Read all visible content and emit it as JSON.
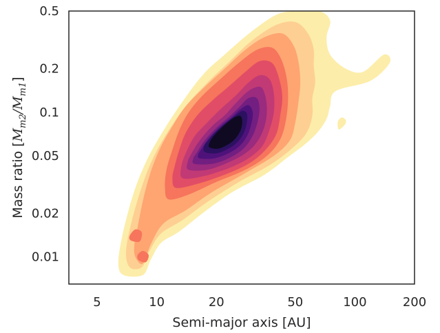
{
  "chart_data": {
    "type": "contour",
    "xlabel": "Semi-major axis [AU]",
    "ylabel": {
      "prefix": "Mass ratio [",
      "m1": "M",
      "s1": "m2",
      "slash": "/",
      "m2": "M",
      "s2": "m1",
      "suffix": "]"
    },
    "x_scale": "log",
    "y_scale": "log",
    "xlim": [
      3.6,
      200
    ],
    "ylim": [
      0.0065,
      0.5
    ],
    "x_ticks": [
      {
        "value": 5,
        "label": "5"
      },
      {
        "value": 10,
        "label": "10"
      },
      {
        "value": 20,
        "label": "20"
      },
      {
        "value": 50,
        "label": "50"
      },
      {
        "value": 100,
        "label": "100"
      },
      {
        "value": 200,
        "label": "200"
      }
    ],
    "y_ticks": [
      {
        "value": 0.01,
        "label": "0.01"
      },
      {
        "value": 0.02,
        "label": "0.02"
      },
      {
        "value": 0.05,
        "label": "0.05"
      },
      {
        "value": 0.1,
        "label": "0.1"
      },
      {
        "value": 0.2,
        "label": "0.2"
      },
      {
        "value": 0.5,
        "label": "0.5"
      }
    ],
    "grid": false,
    "colormap": "magma_r",
    "levels": [
      {
        "color": "#fcedaa",
        "points": [
          [
            6.8,
            0.0075
          ],
          [
            8.5,
            0.0075
          ],
          [
            9.3,
            0.0095
          ],
          [
            10.5,
            0.0125
          ],
          [
            13,
            0.015
          ],
          [
            17,
            0.02
          ],
          [
            24,
            0.028
          ],
          [
            35,
            0.037
          ],
          [
            46,
            0.049
          ],
          [
            56,
            0.06
          ],
          [
            65,
            0.073
          ],
          [
            72,
            0.09
          ],
          [
            75,
            0.11
          ],
          [
            80,
            0.14
          ],
          [
            120,
            0.165
          ],
          [
            150,
            0.22
          ],
          [
            140,
            0.25
          ],
          [
            110,
            0.19
          ],
          [
            90,
            0.2
          ],
          [
            75,
            0.25
          ],
          [
            72,
            0.33
          ],
          [
            75,
            0.43
          ],
          [
            66,
            0.5
          ],
          [
            50,
            0.5
          ],
          [
            40,
            0.47
          ],
          [
            30,
            0.36
          ],
          [
            22,
            0.25
          ],
          [
            17,
            0.18
          ],
          [
            13,
            0.11
          ],
          [
            10.5,
            0.07
          ],
          [
            8.8,
            0.045
          ],
          [
            7.6,
            0.027
          ],
          [
            6.7,
            0.014
          ],
          [
            6.4,
            0.009
          ]
        ]
      },
      {
        "color": "#fecf92",
        "points": [
          [
            7.3,
            0.0085
          ],
          [
            8.4,
            0.0085
          ],
          [
            9.2,
            0.011
          ],
          [
            10.5,
            0.0145
          ],
          [
            13.5,
            0.018
          ],
          [
            18,
            0.024
          ],
          [
            26,
            0.033
          ],
          [
            37,
            0.043
          ],
          [
            48,
            0.056
          ],
          [
            57,
            0.072
          ],
          [
            61,
            0.095
          ],
          [
            61,
            0.125
          ],
          [
            63,
            0.16
          ],
          [
            62,
            0.21
          ],
          [
            62,
            0.27
          ],
          [
            58,
            0.35
          ],
          [
            50,
            0.42
          ],
          [
            40,
            0.4
          ],
          [
            30,
            0.31
          ],
          [
            23,
            0.22
          ],
          [
            18,
            0.16
          ],
          [
            14,
            0.11
          ],
          [
            11.5,
            0.075
          ],
          [
            9.7,
            0.05
          ],
          [
            8.5,
            0.032
          ],
          [
            7.5,
            0.018
          ],
          [
            7,
            0.011
          ]
        ]
      },
      {
        "color": "#fea572",
        "points": [
          [
            7.8,
            0.01
          ],
          [
            8.5,
            0.009
          ],
          [
            9.4,
            0.0125
          ],
          [
            10.8,
            0.017
          ],
          [
            14,
            0.021
          ],
          [
            19,
            0.028
          ],
          [
            28,
            0.038
          ],
          [
            39,
            0.05
          ],
          [
            47,
            0.064
          ],
          [
            50,
            0.085
          ],
          [
            52,
            0.12
          ],
          [
            53,
            0.16
          ],
          [
            52,
            0.22
          ],
          [
            49,
            0.29
          ],
          [
            43,
            0.35
          ],
          [
            35,
            0.33
          ],
          [
            28,
            0.27
          ],
          [
            22,
            0.2
          ],
          [
            17.5,
            0.15
          ],
          [
            14,
            0.11
          ],
          [
            12,
            0.08
          ],
          [
            10.5,
            0.058
          ],
          [
            9.4,
            0.04
          ],
          [
            8.6,
            0.026
          ],
          [
            8,
            0.016
          ],
          [
            7.7,
            0.012
          ]
        ]
      },
      {
        "color": "#f6755c",
        "points": [
          [
            11.5,
            0.025
          ],
          [
            14.5,
            0.027
          ],
          [
            20,
            0.033
          ],
          [
            28,
            0.04
          ],
          [
            36,
            0.05
          ],
          [
            42,
            0.065
          ],
          [
            45,
            0.09
          ],
          [
            46,
            0.13
          ],
          [
            45,
            0.18
          ],
          [
            42,
            0.24
          ],
          [
            38,
            0.28
          ],
          [
            32,
            0.27
          ],
          [
            26,
            0.22
          ],
          [
            21,
            0.17
          ],
          [
            17,
            0.13
          ],
          [
            14.5,
            0.1
          ],
          [
            13,
            0.075
          ],
          [
            12,
            0.055
          ],
          [
            11.2,
            0.04
          ],
          [
            11,
            0.03
          ]
        ]
      },
      {
        "color": "#e14d66",
        "points": [
          [
            12.5,
            0.03
          ],
          [
            16,
            0.032
          ],
          [
            22,
            0.037
          ],
          [
            29,
            0.044
          ],
          [
            35,
            0.054
          ],
          [
            40,
            0.07
          ],
          [
            42,
            0.095
          ],
          [
            43,
            0.13
          ],
          [
            41,
            0.18
          ],
          [
            38,
            0.22
          ],
          [
            33,
            0.225
          ],
          [
            28,
            0.19
          ],
          [
            23,
            0.15
          ],
          [
            19,
            0.12
          ],
          [
            16,
            0.095
          ],
          [
            14,
            0.072
          ],
          [
            13,
            0.055
          ],
          [
            12.3,
            0.042
          ],
          [
            12,
            0.035
          ]
        ]
      },
      {
        "color": "#c13a75",
        "points": [
          [
            13.5,
            0.035
          ],
          [
            17,
            0.036
          ],
          [
            23,
            0.041
          ],
          [
            29,
            0.048
          ],
          [
            34,
            0.058
          ],
          [
            37,
            0.075
          ],
          [
            39,
            0.1
          ],
          [
            39,
            0.135
          ],
          [
            37,
            0.17
          ],
          [
            33,
            0.18
          ],
          [
            29,
            0.16
          ],
          [
            25,
            0.13
          ],
          [
            21,
            0.105
          ],
          [
            18,
            0.085
          ],
          [
            15.5,
            0.068
          ],
          [
            14,
            0.052
          ],
          [
            13.3,
            0.042
          ]
        ]
      },
      {
        "color": "#9a2b7e",
        "points": [
          [
            14.5,
            0.04
          ],
          [
            18,
            0.04
          ],
          [
            23,
            0.045
          ],
          [
            28,
            0.052
          ],
          [
            32,
            0.062
          ],
          [
            35,
            0.08
          ],
          [
            36,
            0.105
          ],
          [
            35,
            0.135
          ],
          [
            33,
            0.15
          ],
          [
            29,
            0.14
          ],
          [
            25,
            0.115
          ],
          [
            22,
            0.095
          ],
          [
            19,
            0.08
          ],
          [
            16.5,
            0.064
          ],
          [
            15,
            0.052
          ],
          [
            14.3,
            0.045
          ]
        ]
      },
      {
        "color": "#721f81",
        "points": [
          [
            15.5,
            0.044
          ],
          [
            19,
            0.044
          ],
          [
            23,
            0.048
          ],
          [
            27,
            0.055
          ],
          [
            30,
            0.066
          ],
          [
            32,
            0.082
          ],
          [
            33,
            0.105
          ],
          [
            32,
            0.125
          ],
          [
            29,
            0.125
          ],
          [
            26,
            0.108
          ],
          [
            23,
            0.092
          ],
          [
            20,
            0.078
          ],
          [
            17.5,
            0.064
          ],
          [
            16,
            0.053
          ],
          [
            15.3,
            0.048
          ]
        ]
      },
      {
        "color": "#4f127b",
        "points": [
          [
            16.5,
            0.048
          ],
          [
            19.5,
            0.048
          ],
          [
            23,
            0.052
          ],
          [
            26,
            0.058
          ],
          [
            28.5,
            0.068
          ],
          [
            30,
            0.083
          ],
          [
            30.5,
            0.1
          ],
          [
            29,
            0.112
          ],
          [
            26.5,
            0.105
          ],
          [
            24,
            0.093
          ],
          [
            21,
            0.08
          ],
          [
            18.5,
            0.067
          ],
          [
            17,
            0.057
          ],
          [
            16.2,
            0.051
          ]
        ]
      },
      {
        "color": "#2c1160",
        "points": [
          [
            17.5,
            0.053
          ],
          [
            20,
            0.052
          ],
          [
            23,
            0.056
          ],
          [
            25.5,
            0.062
          ],
          [
            27.5,
            0.072
          ],
          [
            28.5,
            0.085
          ],
          [
            28.5,
            0.098
          ],
          [
            27,
            0.102
          ],
          [
            25,
            0.095
          ],
          [
            22.5,
            0.085
          ],
          [
            20,
            0.074
          ],
          [
            18.2,
            0.064
          ],
          [
            17.3,
            0.058
          ]
        ]
      },
      {
        "color": "#0f0a22",
        "points": [
          [
            18.5,
            0.057
          ],
          [
            20.5,
            0.056
          ],
          [
            23,
            0.06
          ],
          [
            25,
            0.066
          ],
          [
            26.5,
            0.075
          ],
          [
            27,
            0.086
          ],
          [
            26.5,
            0.094
          ],
          [
            25,
            0.093
          ],
          [
            23,
            0.086
          ],
          [
            21,
            0.077
          ],
          [
            19.3,
            0.068
          ],
          [
            18.4,
            0.061
          ]
        ]
      }
    ],
    "islands": [
      {
        "color": "#fcedaa",
        "points": [
          [
            83,
            0.076
          ],
          [
            89,
            0.082
          ],
          [
            90,
            0.088
          ],
          [
            86,
            0.092
          ],
          [
            82,
            0.086
          ]
        ]
      },
      {
        "color": "#fea572",
        "points": [
          [
            7.9,
            0.012
          ],
          [
            8.8,
            0.0125
          ],
          [
            9,
            0.0145
          ],
          [
            8.6,
            0.0155
          ],
          [
            7.9,
            0.014
          ]
        ]
      },
      {
        "color": "#f6755c",
        "points": [
          [
            8.1,
            0.0095
          ],
          [
            8.8,
            0.0092
          ],
          [
            9.1,
            0.0103
          ],
          [
            8.5,
            0.011
          ],
          [
            8,
            0.0103
          ]
        ]
      },
      {
        "color": "#f6755c",
        "points": [
          [
            7.4,
            0.013
          ],
          [
            8.2,
            0.0128
          ],
          [
            8.4,
            0.0148
          ],
          [
            7.8,
            0.0155
          ],
          [
            7.3,
            0.014
          ]
        ]
      }
    ]
  }
}
